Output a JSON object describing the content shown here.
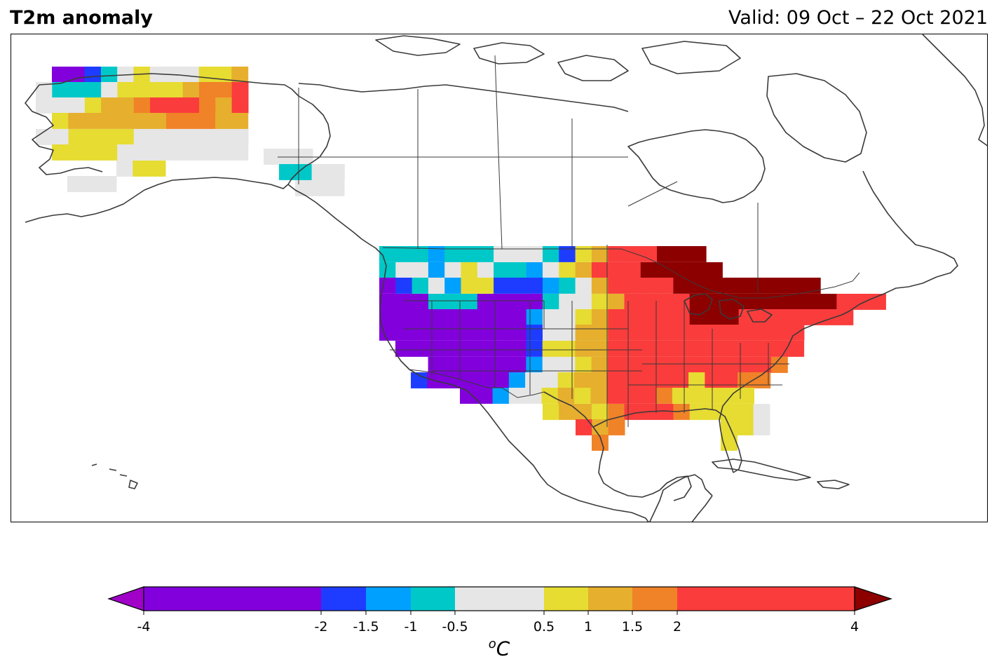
{
  "title": "T2m anomaly",
  "valid_label": "Valid: 09 Oct – 22 Oct 2021",
  "colorbar": {
    "unit_sup": "o",
    "unit_main": "C",
    "extend_low_color": "#a000c8",
    "extend_high_color": "#8c0000",
    "ticks": [
      "-4",
      "-2",
      "-1.5",
      "-1",
      "-0.5",
      "0.5",
      "1",
      "1.5",
      "2",
      "4"
    ],
    "tick_values": [
      -4,
      -2,
      -1.5,
      -1,
      -0.5,
      0.5,
      1,
      1.5,
      2,
      4
    ],
    "bins": [
      {
        "from": -4,
        "to": -2,
        "color": "#8200dc"
      },
      {
        "from": -2,
        "to": -1.5,
        "color": "#1e3cff"
      },
      {
        "from": -1.5,
        "to": -1,
        "color": "#00a0ff"
      },
      {
        "from": -1,
        "to": -0.5,
        "color": "#00c8c8"
      },
      {
        "from": -0.5,
        "to": 0.5,
        "color": "#e6e6e6"
      },
      {
        "from": 0.5,
        "to": 1,
        "color": "#e6dc32"
      },
      {
        "from": 1,
        "to": 1.5,
        "color": "#e6af2d"
      },
      {
        "from": 1.5,
        "to": 2,
        "color": "#f08228"
      },
      {
        "from": 2,
        "to": 4,
        "color": "#fa3c3c"
      }
    ]
  },
  "colors": {
    "coast": "#3a3a3a",
    "frame": "#000000"
  }
}
